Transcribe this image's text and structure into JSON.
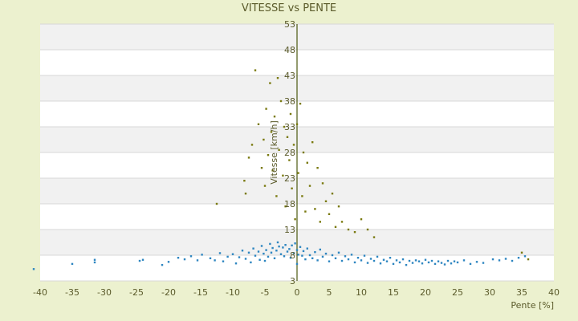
{
  "chart_data": {
    "type": "scatter",
    "title": "VITESSE vs PENTE",
    "xlabel": "Pente [%]",
    "ylabel": "Vitesse [km/h]",
    "xlim": [
      -40,
      40
    ],
    "ylim": [
      3,
      53
    ],
    "x_ticks": [
      "-40",
      "-35",
      "-30",
      "-25",
      "-20",
      "-15",
      "-10",
      "-5",
      "0",
      "5",
      "10",
      "15",
      "20",
      "25",
      "30",
      "35",
      "40"
    ],
    "y_ticks": [
      "3",
      "8",
      "13",
      "18",
      "23",
      "28",
      "33",
      "38",
      "43",
      "48",
      "53"
    ],
    "grid": "horizontal bands",
    "colors": {
      "background": "#ecf1cf",
      "plot_band_light": "#ffffff",
      "plot_band_dark": "#f1f1f1",
      "series_1": "#2e86c1",
      "series_2": "#7a7a10",
      "axis": "#4d5a10"
    },
    "series": [
      {
        "points": [
          [
            -41.0,
            5.3
          ],
          [
            -35.0,
            6.3
          ],
          [
            -31.5,
            6.6
          ],
          [
            -31.5,
            7.1
          ],
          [
            -24.5,
            6.9
          ],
          [
            -24.0,
            7.1
          ],
          [
            -21.0,
            6.1
          ],
          [
            -20.0,
            6.7
          ],
          [
            -18.5,
            7.5
          ],
          [
            -17.5,
            7.2
          ],
          [
            -16.5,
            7.8
          ],
          [
            -15.5,
            7.0
          ],
          [
            -14.8,
            8.1
          ],
          [
            -13.5,
            7.4
          ],
          [
            -12.8,
            7.0
          ],
          [
            -12.0,
            8.4
          ],
          [
            -11.5,
            6.8
          ],
          [
            -10.8,
            7.7
          ],
          [
            -10.0,
            8.2
          ],
          [
            -9.5,
            6.4
          ],
          [
            -9.0,
            7.6
          ],
          [
            -8.5,
            8.9
          ],
          [
            -8.0,
            7.3
          ],
          [
            -7.5,
            8.5
          ],
          [
            -7.2,
            6.6
          ],
          [
            -6.8,
            9.3
          ],
          [
            -6.5,
            7.9
          ],
          [
            -6.0,
            8.7
          ],
          [
            -5.8,
            7.1
          ],
          [
            -5.5,
            9.8
          ],
          [
            -5.2,
            8.3
          ],
          [
            -5.0,
            6.9
          ],
          [
            -4.8,
            9.0
          ],
          [
            -4.5,
            7.7
          ],
          [
            -4.2,
            10.2
          ],
          [
            -4.0,
            8.5
          ],
          [
            -3.8,
            9.4
          ],
          [
            -3.5,
            7.4
          ],
          [
            -3.2,
            8.9
          ],
          [
            -3.0,
            10.5
          ],
          [
            -2.8,
            9.7
          ],
          [
            -2.5,
            8.2
          ],
          [
            -2.2,
            9.5
          ],
          [
            -2.0,
            7.8
          ],
          [
            -1.8,
            10.0
          ],
          [
            -1.5,
            8.7
          ],
          [
            -1.2,
            9.2
          ],
          [
            -1.0,
            7.5
          ],
          [
            -0.8,
            9.9
          ],
          [
            -0.5,
            8.4
          ],
          [
            -0.3,
            10.3
          ],
          [
            0.0,
            9.0
          ],
          [
            0.0,
            6.3
          ],
          [
            0.2,
            8.1
          ],
          [
            0.5,
            9.6
          ],
          [
            0.8,
            7.9
          ],
          [
            1.0,
            8.8
          ],
          [
            1.3,
            7.2
          ],
          [
            1.6,
            9.3
          ],
          [
            2.0,
            8.0
          ],
          [
            2.4,
            7.4
          ],
          [
            2.8,
            8.6
          ],
          [
            3.2,
            7.0
          ],
          [
            3.6,
            9.1
          ],
          [
            4.0,
            7.7
          ],
          [
            4.5,
            8.3
          ],
          [
            5.0,
            6.8
          ],
          [
            5.5,
            8.0
          ],
          [
            6.0,
            7.4
          ],
          [
            6.5,
            8.5
          ],
          [
            7.0,
            6.9
          ],
          [
            7.5,
            7.8
          ],
          [
            8.0,
            7.2
          ],
          [
            8.5,
            8.1
          ],
          [
            9.0,
            6.6
          ],
          [
            9.5,
            7.5
          ],
          [
            10.0,
            7.0
          ],
          [
            10.5,
            7.9
          ],
          [
            11.0,
            6.5
          ],
          [
            11.5,
            7.3
          ],
          [
            12.0,
            6.9
          ],
          [
            12.5,
            7.7
          ],
          [
            13.0,
            6.4
          ],
          [
            13.5,
            7.1
          ],
          [
            14.0,
            6.8
          ],
          [
            14.5,
            7.5
          ],
          [
            15.0,
            6.3
          ],
          [
            15.5,
            7.0
          ],
          [
            16.0,
            6.6
          ],
          [
            16.5,
            7.2
          ],
          [
            17.0,
            6.1
          ],
          [
            17.5,
            6.9
          ],
          [
            18.0,
            6.5
          ],
          [
            18.5,
            7.0
          ],
          [
            19.0,
            6.8
          ],
          [
            19.5,
            6.4
          ],
          [
            20.0,
            7.1
          ],
          [
            20.5,
            6.6
          ],
          [
            21.0,
            6.9
          ],
          [
            21.5,
            6.3
          ],
          [
            22.0,
            6.8
          ],
          [
            22.5,
            6.5
          ],
          [
            23.0,
            6.2
          ],
          [
            23.5,
            6.9
          ],
          [
            24.0,
            6.4
          ],
          [
            24.5,
            6.8
          ],
          [
            25.0,
            6.6
          ],
          [
            26.0,
            7.0
          ],
          [
            27.0,
            6.3
          ],
          [
            28.0,
            6.7
          ],
          [
            29.0,
            6.5
          ],
          [
            30.5,
            7.2
          ],
          [
            31.5,
            7.0
          ],
          [
            32.5,
            7.3
          ],
          [
            33.5,
            6.9
          ],
          [
            34.5,
            7.5
          ],
          [
            35.5,
            7.8
          ]
        ]
      },
      {
        "points": [
          [
            -12.5,
            18.0
          ],
          [
            -8.0,
            20.0
          ],
          [
            -8.2,
            22.5
          ],
          [
            -7.5,
            27.0
          ],
          [
            -7.0,
            29.5
          ],
          [
            -6.5,
            44.0
          ],
          [
            -6.0,
            33.5
          ],
          [
            -5.5,
            25.0
          ],
          [
            -5.2,
            30.5
          ],
          [
            -5.0,
            21.5
          ],
          [
            -4.8,
            36.5
          ],
          [
            -4.5,
            27.5
          ],
          [
            -4.2,
            41.5
          ],
          [
            -4.0,
            32.0
          ],
          [
            -3.8,
            24.5
          ],
          [
            -3.5,
            35.0
          ],
          [
            -3.2,
            19.5
          ],
          [
            -3.0,
            42.5
          ],
          [
            -2.8,
            28.5
          ],
          [
            -2.5,
            38.0
          ],
          [
            -2.2,
            23.5
          ],
          [
            -2.0,
            33.0
          ],
          [
            -1.8,
            17.5
          ],
          [
            -1.5,
            31.0
          ],
          [
            -1.2,
            26.5
          ],
          [
            -1.0,
            35.5
          ],
          [
            -0.8,
            21.0
          ],
          [
            -0.5,
            29.5
          ],
          [
            -0.3,
            15.0
          ],
          [
            0.0,
            33.5
          ],
          [
            0.2,
            24.0
          ],
          [
            0.5,
            37.5
          ],
          [
            0.8,
            19.5
          ],
          [
            1.0,
            28.0
          ],
          [
            1.3,
            16.5
          ],
          [
            1.6,
            26.0
          ],
          [
            2.0,
            21.5
          ],
          [
            2.4,
            30.0
          ],
          [
            2.8,
            17.0
          ],
          [
            3.2,
            25.0
          ],
          [
            3.6,
            14.5
          ],
          [
            4.0,
            22.0
          ],
          [
            4.5,
            18.5
          ],
          [
            5.0,
            16.0
          ],
          [
            5.5,
            20.0
          ],
          [
            6.0,
            13.5
          ],
          [
            6.5,
            17.5
          ],
          [
            7.0,
            14.5
          ],
          [
            8.0,
            13.0
          ],
          [
            9.0,
            12.5
          ],
          [
            10.0,
            15.0
          ],
          [
            11.0,
            13.0
          ],
          [
            12.0,
            11.5
          ],
          [
            35.0,
            8.5
          ],
          [
            36.0,
            7.2
          ]
        ]
      }
    ]
  }
}
